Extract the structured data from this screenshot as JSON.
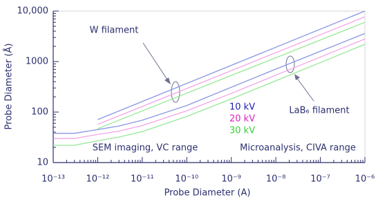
{
  "chart_data": {
    "type": "line",
    "x_label": "Probe Diameter (A)",
    "y_label": "Probe Diameter (Å)",
    "log_x": true,
    "log_y": true,
    "grid": false,
    "minor_ticks": true,
    "xlim": [
      1e-13,
      1e-06
    ],
    "ylim": [
      10,
      10000
    ],
    "xticks": [
      {
        "value": 1e-13,
        "label": "10⁻¹³"
      },
      {
        "value": 1e-12,
        "label": "10⁻¹²"
      },
      {
        "value": 1e-11,
        "label": "10⁻¹¹"
      },
      {
        "value": 1e-10,
        "label": "10⁻¹⁰"
      },
      {
        "value": 1e-09,
        "label": "10⁻⁹"
      },
      {
        "value": 1e-08,
        "label": "10⁻⁸"
      },
      {
        "value": 1e-07,
        "label": "10⁻⁷"
      },
      {
        "value": 1e-06,
        "label": "10⁻⁶"
      }
    ],
    "yticks": [
      10,
      100,
      1000,
      {
        "value": 10000,
        "label": "10,000"
      }
    ],
    "annotations": [
      "W filament",
      "LaB₆ filament",
      "SEM imaging, VC range",
      "Microanalysis, CIVA range"
    ],
    "series": [
      {
        "name": "10 kV",
        "color": "#1c1cb4",
        "line_color": "#8a96e4",
        "curves": [
          {
            "x": [
              1e-12,
              1e-06
            ],
            "values": [
              71,
              10000
            ]
          },
          {
            "x": [
              1e-13,
              3e-13,
              1e-12,
              3e-12,
              1e-11,
              1e-10,
              1e-09,
              1e-08,
              1e-07,
              1e-06
            ],
            "values": [
              38,
              38,
              45,
              53,
              69,
              135,
              310,
              710,
              1600,
              3600
            ]
          }
        ]
      },
      {
        "name": "20 kV",
        "color": "#e020c0",
        "line_color": "#f2a4e6",
        "curves": [
          {
            "x": [
              1e-12,
              1e-06
            ],
            "values": [
              57,
              7700
            ]
          },
          {
            "x": [
              1e-13,
              3e-13,
              1e-12,
              3e-12,
              1e-11,
              1e-10,
              1e-09,
              1e-08,
              1e-07,
              1e-06
            ],
            "values": [
              30,
              30,
              36,
              42,
              54,
              106,
              234,
              537,
              1230,
              2800
            ]
          }
        ]
      },
      {
        "name": "30 kV",
        "color": "#3ccf3c",
        "line_color": "#96e896",
        "curves": [
          {
            "x": [
              1e-12,
              1e-06
            ],
            "values": [
              47,
              6000
            ]
          },
          {
            "x": [
              1e-13,
              3e-13,
              1e-12,
              3e-12,
              1e-11,
              1e-10,
              1e-09,
              1e-08,
              1e-07,
              1e-06
            ],
            "values": [
              22,
              22,
              27,
              32,
              41,
              82,
              182,
              417,
              955,
              2200
            ]
          }
        ]
      }
    ]
  }
}
